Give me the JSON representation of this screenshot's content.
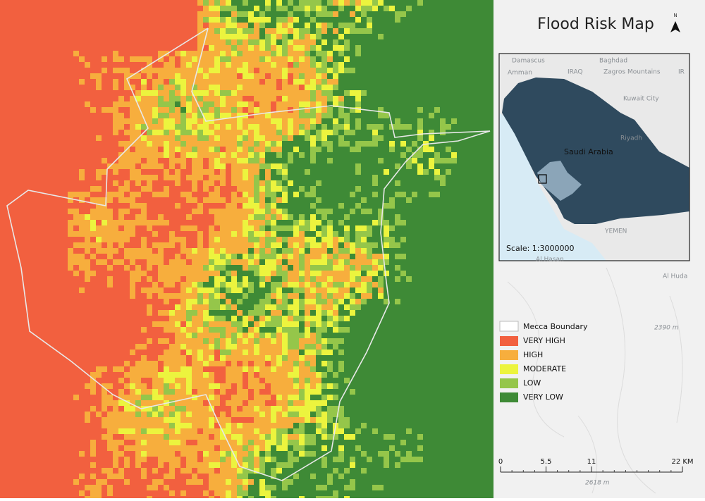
{
  "title": "Flood Risk Map",
  "north_label": "N",
  "inset": {
    "labels": [
      "Damascus",
      "Baghdad",
      "Amman",
      "IRAQ",
      "Zagros Mountains",
      "IR",
      "Kuwait City",
      "Riyadh",
      "YEMEN"
    ],
    "country": "Saudi Arabia",
    "scale": "Scale: 1:3000000"
  },
  "basemap_labels": [
    "Al Hasan",
    "Al Huda",
    "2390 m",
    "2618 m"
  ],
  "legend": {
    "boundary": "Mecca Boundary",
    "classes": [
      {
        "label": "VERY HIGH",
        "color": "#f2603f"
      },
      {
        "label": "HIGH",
        "color": "#f7ae3d"
      },
      {
        "label": "MODERATE",
        "color": "#ecf43e"
      },
      {
        "label": "LOW",
        "color": "#95c64a"
      },
      {
        "label": "VERY LOW",
        "color": "#3e8a36"
      }
    ]
  },
  "scale_bar": {
    "ticks": [
      0,
      5.5,
      11,
      {
        "value": 22,
        "label": "22 KM"
      }
    ]
  }
}
